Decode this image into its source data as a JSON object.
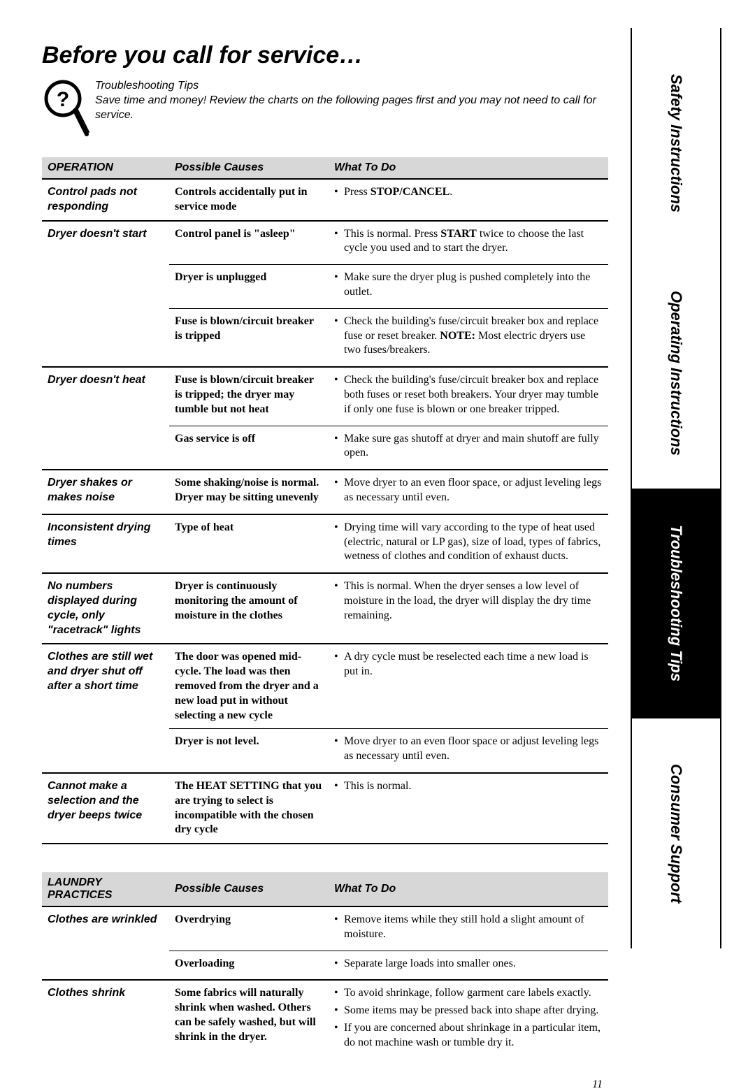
{
  "title": "Before you call for service…",
  "intro": {
    "heading": "Troubleshooting Tips",
    "body": "Save time and money! Review the charts on the following pages first and you may not need to call for service."
  },
  "sidebar": [
    {
      "label": "Safety Instructions",
      "active": false
    },
    {
      "label": "Operating Instructions",
      "active": false
    },
    {
      "label": "Troubleshooting Tips",
      "active": true
    },
    {
      "label": "Consumer Support",
      "active": false
    }
  ],
  "tables": {
    "operation": {
      "headers": [
        "OPERATION",
        "Possible Causes",
        "What To Do"
      ],
      "rows": [
        {
          "problem": "Control pads not responding",
          "cause_html": "Controls accidentally put in service mode",
          "todo_html": [
            "Press <b>STOP/CANCEL</b>."
          ],
          "rowspan": 1,
          "top": "hr2"
        },
        {
          "problem": "Dryer doesn't start",
          "cause_html": "Control panel is \"asleep\"",
          "todo_html": [
            "This is normal. Press <b>START</b> twice to choose the last cycle you used and to start the dryer."
          ],
          "rowspan": 3,
          "top": "hr2"
        },
        {
          "cause_html": "Dryer is unplugged",
          "todo_html": [
            "Make sure the dryer plug is pushed completely into the outlet."
          ],
          "sub": true
        },
        {
          "cause_html": "Fuse is blown/circuit breaker is tripped",
          "todo_html": [
            "Check the building's fuse/circuit breaker box and replace fuse or reset breaker. <b>NOTE:</b> Most electric dryers use two fuses/breakers."
          ],
          "sub": true
        },
        {
          "problem": "Dryer doesn't heat",
          "cause_html": "Fuse is blown/circuit breaker is tripped; the dryer may tumble but not heat",
          "todo_html": [
            "Check the building's fuse/circuit breaker box and replace both fuses or reset both breakers. Your dryer may tumble if only one fuse is blown or one breaker tripped."
          ],
          "rowspan": 2,
          "top": "hr2"
        },
        {
          "cause_html": "Gas service is off",
          "todo_html": [
            "Make sure gas shutoff at dryer and main shutoff are fully open."
          ],
          "sub": true
        },
        {
          "problem": "Dryer shakes or makes noise",
          "cause_html": "Some shaking/noise is normal. Dryer may be sitting unevenly",
          "todo_html": [
            "Move dryer to an even floor space, or adjust leveling legs as necessary until even."
          ],
          "rowspan": 1,
          "top": "hr2"
        },
        {
          "problem": "Inconsistent drying times",
          "cause_html": "Type of heat",
          "todo_html": [
            "Drying time will vary according to the type of heat used (electric, natural or LP gas), size of load, types of fabrics, wetness of clothes and condition of exhaust ducts."
          ],
          "rowspan": 1,
          "top": "hr2"
        },
        {
          "problem": "No numbers displayed during cycle, only \"racetrack\" lights",
          "cause_html": "Dryer is continuously monitoring the amount of moisture in the clothes",
          "todo_html": [
            "This is normal. When the dryer senses a low level of moisture in the load, the dryer will display the dry time remaining."
          ],
          "rowspan": 1,
          "top": "hr2"
        },
        {
          "problem": "Clothes are still wet and dryer shut off after a short time",
          "cause_html": "The door was opened mid-cycle. The load was then removed from the dryer and a new load put in without selecting a new cycle",
          "todo_html": [
            "A dry cycle must be reselected each time a new load is put in."
          ],
          "rowspan": 2,
          "top": "hr2"
        },
        {
          "cause_html": "Dryer is not level.",
          "todo_html": [
            "Move dryer to an even floor space or adjust leveling legs as necessary until even."
          ],
          "sub": true
        },
        {
          "problem": "Cannot make a selection and the dryer beeps twice",
          "cause_html": "The <b>HEAT SETTING</b> that you are trying to select is incompatible with the chosen dry cycle",
          "todo_html": [
            "This is normal."
          ],
          "rowspan": 1,
          "top": "hr2",
          "bottom": "hr2"
        }
      ]
    },
    "laundry": {
      "headers": [
        "LAUNDRY PRACTICES",
        "Possible Causes",
        "What To Do"
      ],
      "rows": [
        {
          "problem": "Clothes are wrinkled",
          "cause_html": "Overdrying",
          "todo_html": [
            "Remove items while they still hold a slight amount of moisture."
          ],
          "rowspan": 2,
          "top": "hr2"
        },
        {
          "cause_html": "Overloading",
          "todo_html": [
            "Separate large loads into smaller ones."
          ],
          "sub": true
        },
        {
          "problem": "Clothes shrink",
          "cause_html": "Some fabrics will naturally shrink when washed. Others can be safely washed, but will shrink in the dryer.",
          "todo_html": [
            "To avoid shrinkage, follow garment care labels exactly.",
            "Some items may be pressed back into shape after drying.",
            "If you are concerned about shrinkage in a particular item, do not machine wash or tumble dry it."
          ],
          "rowspan": 1,
          "top": "hr2"
        }
      ]
    }
  },
  "page_number": "11",
  "colors": {
    "header_bg": "#d7d7d7",
    "sidebar_active_bg": "#000000",
    "sidebar_active_fg": "#ffffff",
    "rule": "#000000"
  }
}
